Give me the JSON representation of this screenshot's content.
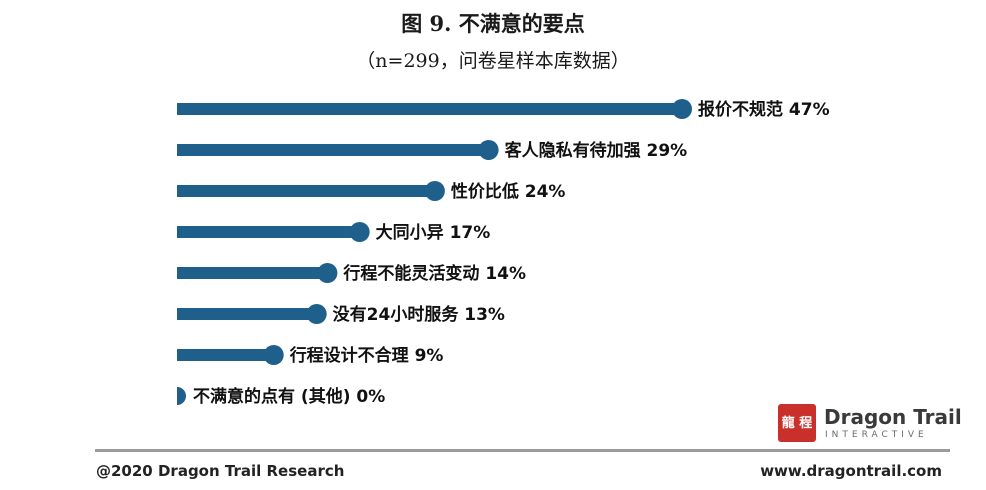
{
  "chart_data": {
    "type": "bar",
    "orientation": "horizontal",
    "title": "图 9. 不满意的要点",
    "subtitle": "（n=299，问卷星样本库数据）",
    "categories": [
      "报价不规范",
      "客人隐私有待加强",
      "性价比低",
      "大同小异",
      "行程不能灵活变动",
      "没有24小时服务",
      "行程设计不合理",
      "不满意的点有 (其他)"
    ],
    "values": [
      47,
      29,
      24,
      17,
      14,
      13,
      9,
      0
    ],
    "value_labels": [
      "47%",
      "29%",
      "24%",
      "17%",
      "14%",
      "13%",
      "9%",
      "0%"
    ],
    "unit": "%",
    "xlim": [
      0,
      47
    ],
    "bar_color": "#1f5f8b",
    "grid": false,
    "legend": "none"
  },
  "footer": {
    "copyright": "@2020 Dragon Trail Research",
    "website": "www.dragontrail.com"
  },
  "logo": {
    "mark": "龍 程",
    "name": "Dragon Trail",
    "tagline": "INTERACTIVE"
  }
}
